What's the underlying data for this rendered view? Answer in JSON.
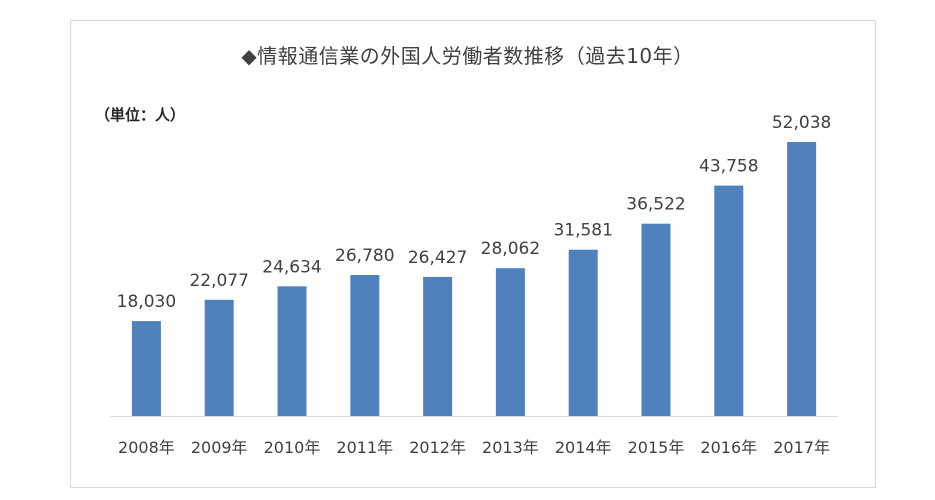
{
  "chart_data": {
    "type": "bar",
    "title": "◆情報通信業の外国人労働者数推移（過去10年）",
    "unit_label": "（単位：人）",
    "xlabel": "",
    "ylabel": "",
    "categories": [
      "2008年",
      "2009年",
      "2010年",
      "2011年",
      "2012年",
      "2013年",
      "2014年",
      "2015年",
      "2016年",
      "2017年"
    ],
    "values": [
      18030,
      22077,
      24634,
      26780,
      26427,
      28062,
      31581,
      36522,
      43758,
      52038
    ],
    "value_labels": [
      "18,030",
      "22,077",
      "24,634",
      "26,780",
      "26,427",
      "28,062",
      "31,581",
      "36,522",
      "43,758",
      "52,038"
    ],
    "ylim": [
      0,
      55000
    ],
    "grid": false,
    "legend": "none",
    "bar_color": "#4f81bd",
    "axis_color": "#d9d9d9",
    "label_color": "#404040"
  }
}
